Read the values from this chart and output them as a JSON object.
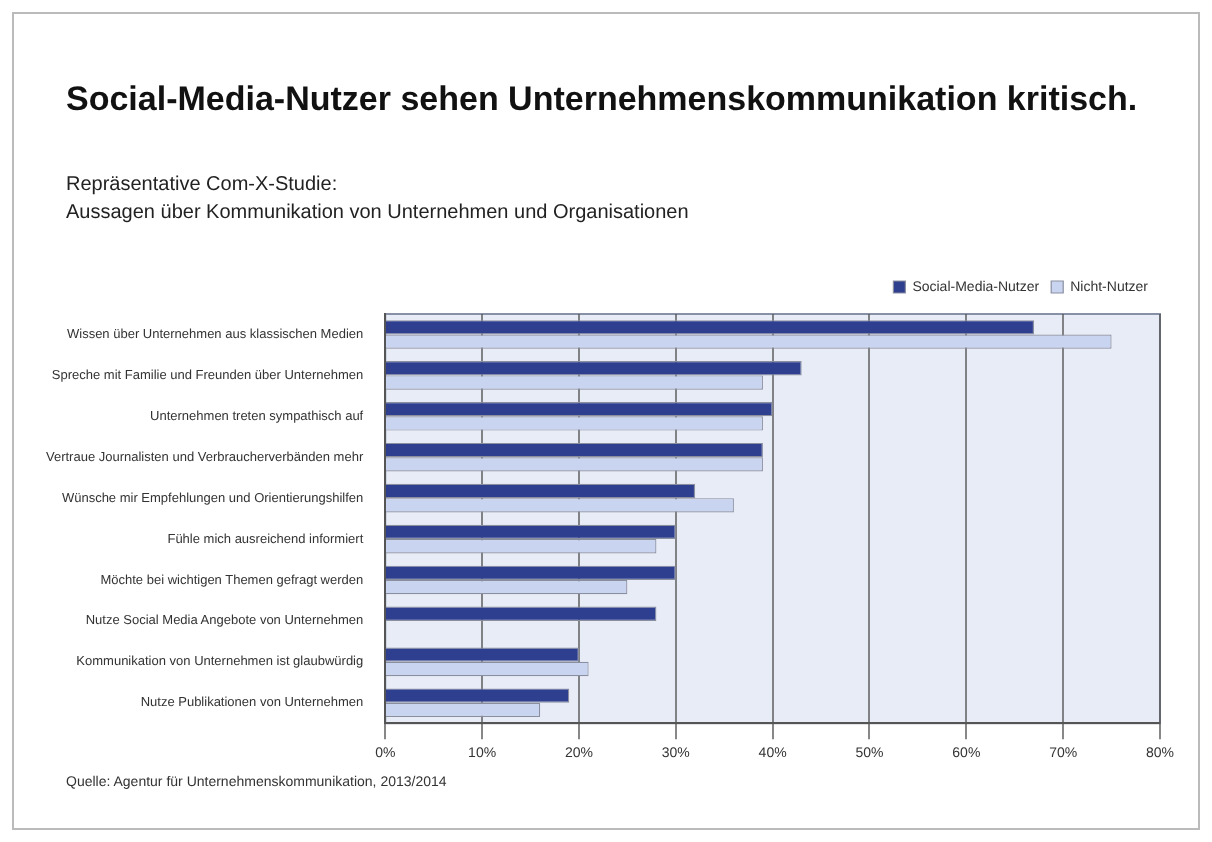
{
  "chart_data": {
    "type": "bar",
    "orientation": "horizontal",
    "title": "Social-Media-Nutzer sehen Unternehmenskommunikation kritisch.",
    "subtitle": "Repräsentative Com-X-Studie:\nAussagen über Kommunikation von Unternehmen und Organisationen",
    "categories": [
      "Wissen über Unternehmen aus klassischen Medien",
      "Spreche mit Familie und Freunden über Unternehmen",
      "Unternehmen treten sympathisch auf",
      "Vertraue Journalisten und Verbraucherverbänden mehr",
      "Wünsche mir Empfehlungen und Orientierungshilfen",
      "Fühle mich ausreichend informiert",
      "Möchte bei wichtigen Themen gefragt werden",
      "Nutze Social Media Angebote von Unternehmen",
      "Kommunikation von Unternehmen ist glaubwürdig",
      "Nutze Publikationen von Unternehmen"
    ],
    "series": [
      {
        "name": "Social-Media-Nutzer",
        "color": "#2e3f8f",
        "values": [
          67,
          43,
          40,
          39,
          32,
          30,
          30,
          28,
          20,
          19
        ]
      },
      {
        "name": "Nicht-Nutzer",
        "color": "#c8d4f0",
        "values": [
          75,
          39,
          39,
          39,
          36,
          28,
          25,
          null,
          21,
          16
        ]
      }
    ],
    "xlim": [
      0,
      80
    ],
    "xticks": [
      {
        "value": 0,
        "label": "0%"
      },
      {
        "value": 10,
        "label": "10%"
      },
      {
        "value": 20,
        "label": "20%"
      },
      {
        "value": 30,
        "label": "30%"
      },
      {
        "value": 40,
        "label": "40%"
      },
      {
        "value": 50,
        "label": "50%"
      },
      {
        "value": 60,
        "label": "60%"
      },
      {
        "value": 70,
        "label": "70%"
      },
      {
        "value": 80,
        "label": "80%"
      }
    ],
    "grid": "x",
    "legend": "top",
    "annotations": [
      "Quelle: Agentur für Unternehmenskommunikation, 2013/2014"
    ]
  }
}
